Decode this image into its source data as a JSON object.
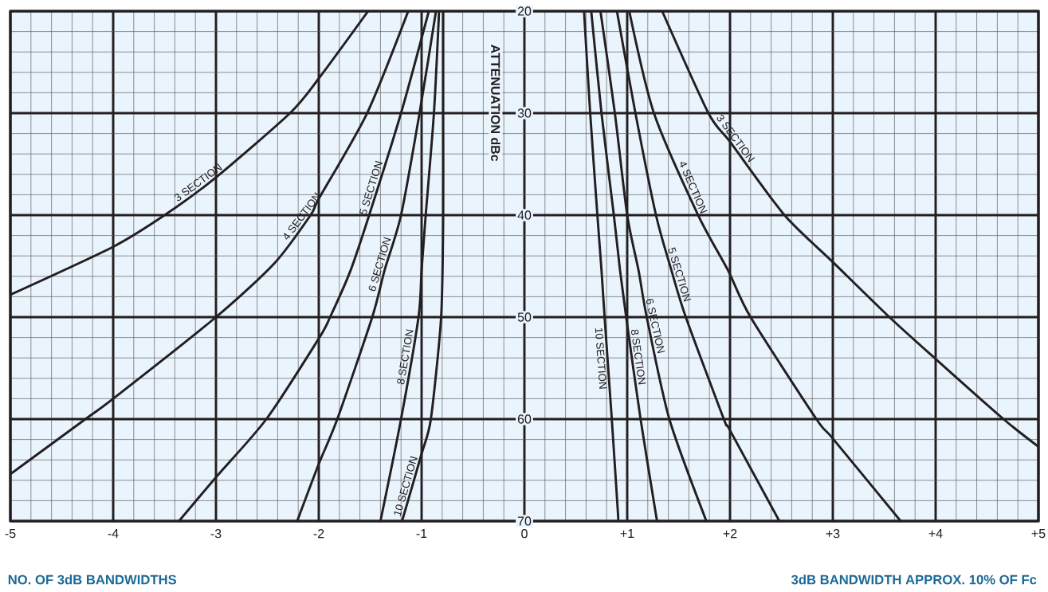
{
  "chart_data": {
    "type": "line",
    "xlabel": "NO. OF 3dB BANDWIDTHS",
    "ylabel": "ATTENUATION dBc",
    "annotations": [
      "3dB BANDWIDTH APPROX. 10% OF Fc"
    ],
    "xlim": [
      -5,
      5
    ],
    "ylim": [
      70,
      20
    ],
    "xticks": [
      -5,
      -4,
      -3,
      -2,
      -1,
      0,
      {
        "value": 1,
        "label": "+1"
      },
      {
        "value": 2,
        "label": "+2"
      },
      {
        "value": 3,
        "label": "+3"
      },
      {
        "value": 4,
        "label": "+4"
      },
      {
        "value": 5,
        "label": "+5"
      }
    ],
    "yticks": [
      20,
      30,
      40,
      50,
      60,
      70
    ],
    "grid": true,
    "series": [
      {
        "name": "3 SECTION",
        "color": "#231f20",
        "x": [
          -1.52,
          -2.0,
          -2.28,
          -3.0,
          -3.5,
          -4.0,
          -5.0
        ],
        "values": [
          20,
          26.6,
          30,
          36.3,
          40,
          43.1,
          47.8
        ]
      },
      {
        "name": "4 SECTION",
        "color": "#231f20",
        "x": [
          -1.13,
          -1.53,
          -2.0,
          -2.08,
          -2.43,
          -3.0,
          -4.0,
          -4.27,
          -5.0
        ],
        "values": [
          20,
          30,
          38.4,
          40,
          44.7,
          50,
          58,
          60,
          65.4
        ]
      },
      {
        "name": "5 SECTION",
        "color": "#231f20",
        "x": [
          -0.93,
          -1.2,
          -1.51,
          -1.69,
          -1.89,
          -2.0,
          -2.51,
          -3.0,
          -3.36
        ],
        "values": [
          20,
          30,
          40,
          45.4,
          50,
          52.1,
          60,
          65.7,
          70
        ]
      },
      {
        "name": "6 SECTION",
        "color": "#231f20",
        "x": [
          -0.86,
          -1.02,
          -1.2,
          -1.36,
          -1.48,
          -1.82,
          -2.0,
          -2.21
        ],
        "values": [
          20,
          30,
          40,
          45.4,
          50,
          60,
          64.4,
          70
        ]
      },
      {
        "name": "8 SECTION",
        "color": "#231f20",
        "x": [
          -0.83,
          -0.88,
          -0.96,
          -1.0,
          -1.03,
          -1.2,
          -1.4
        ],
        "values": [
          20,
          30,
          40,
          45.4,
          50,
          60,
          70
        ]
      },
      {
        "name": "10 SECTION",
        "color": "#231f20",
        "x": [
          -0.79,
          -0.79,
          -0.79,
          -0.81,
          -0.91,
          -1.0,
          -1.19
        ],
        "values": [
          20,
          30,
          40,
          50,
          60,
          63.4,
          70
        ]
      },
      {
        "name": "3 SECTION",
        "color": "#231f20",
        "x": [
          1.34,
          1.79,
          2.0,
          2.53,
          3.0,
          3.55,
          4.0,
          4.66,
          5.0
        ],
        "values": [
          20,
          30,
          32.8,
          40,
          44.6,
          50,
          54.1,
          60,
          62.7
        ]
      },
      {
        "name": "4 SECTION",
        "color": "#231f20",
        "x": [
          1.02,
          1.26,
          1.69,
          1.98,
          2.2,
          2.84,
          3.0,
          3.66
        ],
        "values": [
          20,
          30,
          40,
          45.4,
          50,
          60,
          61.9,
          70
        ]
      },
      {
        "name": "5 SECTION",
        "color": "#231f20",
        "x": [
          0.9,
          1.08,
          1.28,
          1.43,
          1.57,
          1.94,
          2.0,
          2.48
        ],
        "values": [
          20,
          30,
          40,
          45.4,
          50,
          60,
          61.1,
          70
        ]
      },
      {
        "name": "6 SECTION",
        "color": "#231f20",
        "x": [
          0.74,
          0.88,
          1.0,
          1.11,
          1.19,
          1.41,
          1.77
        ],
        "values": [
          20,
          30,
          40,
          45.4,
          50,
          60,
          70
        ]
      },
      {
        "name": "8 SECTION",
        "color": "#231f20",
        "x": [
          0.65,
          0.75,
          0.87,
          0.93,
          0.99,
          1.13,
          1.29
        ],
        "values": [
          20,
          30,
          40,
          45.4,
          50,
          60,
          70
        ]
      },
      {
        "name": "10 SECTION",
        "color": "#231f20",
        "x": [
          0.58,
          0.64,
          0.71,
          0.75,
          0.78,
          0.85,
          0.915
        ],
        "values": [
          20,
          30,
          40,
          45.4,
          50,
          60,
          70
        ]
      }
    ]
  }
}
